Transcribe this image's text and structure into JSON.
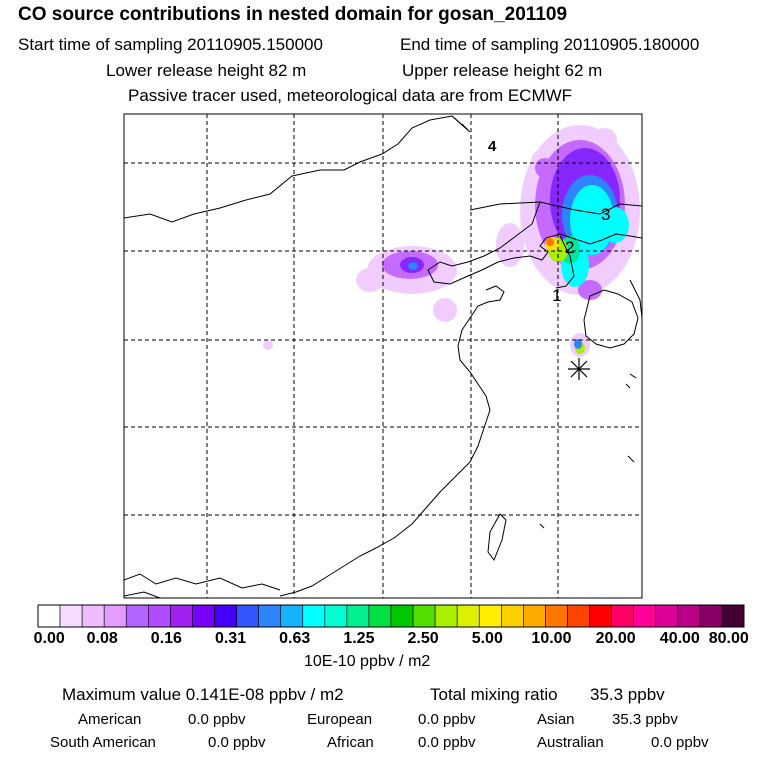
{
  "header": {
    "title": "CO  source contributions in nested domain for gosan_201109",
    "start_time": "Start time of sampling 20110905.150000",
    "end_time": "End time of sampling 20110905.180000",
    "lower_release": "Lower release height   82 m",
    "upper_release": "Upper release height   62 m",
    "note": "Passive tracer used, meteorological data are from ECMWF"
  },
  "map": {
    "labels": [
      {
        "text": "4",
        "name": "map-label-4"
      },
      {
        "text": "3",
        "name": "map-label-3"
      },
      {
        "text": "2",
        "name": "map-label-2"
      },
      {
        "text": "1",
        "name": "map-label-1"
      }
    ],
    "receptor_icon": "asterisk-icon"
  },
  "colorbar": {
    "colors": [
      "#ffffff",
      "#f6ddff",
      "#eebcff",
      "#e59cff",
      "#b266ff",
      "#b14bff",
      "#a021ef",
      "#7700ff",
      "#4400ff",
      "#3355ff",
      "#2c84ff",
      "#15b2ff",
      "#00ffff",
      "#00ffd0",
      "#00f090",
      "#00e040",
      "#00c800",
      "#55dd00",
      "#aaee00",
      "#ddf000",
      "#ffee00",
      "#ffd000",
      "#ffaa00",
      "#ff7700",
      "#ff4400",
      "#ff0000",
      "#ff0066",
      "#ff0099",
      "#dd0099",
      "#bb0088",
      "#880066",
      "#440033"
    ],
    "tick_labels": [
      "0.00",
      "0.08",
      "0.16",
      "0.31",
      "0.63",
      "1.25",
      "2.50",
      "5.00",
      "10.00",
      "20.00",
      "40.00",
      "80.00"
    ],
    "units": "10E-10 ppbv / m2"
  },
  "summary": {
    "max_value": "Maximum value  0.141E-08 ppbv / m2",
    "total_mixing_label": "Total mixing ratio",
    "total_mixing_value": "35.3 ppbv",
    "regions": [
      {
        "name": "American",
        "value": "0.0 ppbv"
      },
      {
        "name": "European",
        "value": "0.0 ppbv"
      },
      {
        "name": "Asian",
        "value": "35.3 ppbv"
      },
      {
        "name": "South American",
        "value": "0.0 ppbv"
      },
      {
        "name": "African",
        "value": "0.0 ppbv"
      },
      {
        "name": "Australian",
        "value": "0.0 ppbv"
      }
    ]
  }
}
